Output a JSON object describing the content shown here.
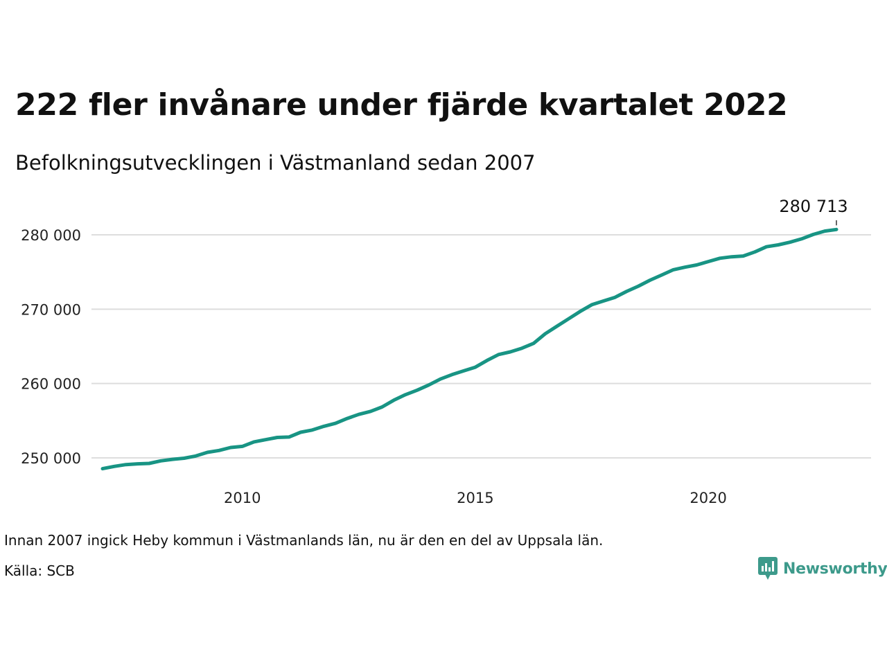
{
  "title": "222 fler invånare under fjärde kvartalet 2022",
  "subtitle": "Befolkningsutvecklingen i Västmanland sedan 2007",
  "note": "Innan 2007 ingick Heby kommun i Västmanlands län, nu är den en del av Uppsala län.",
  "source": "Källa: SCB",
  "brand": {
    "name": "Newsworthy",
    "icon": "newsworthy-logo-icon",
    "color": "#3d9a8b"
  },
  "chart_data": {
    "type": "line",
    "title": "222 fler invånare under fjärde kvartalet 2022",
    "subtitle": "Befolkningsutvecklingen i Västmanland sedan 2007",
    "xlabel": "",
    "ylabel": "",
    "line_color": "#189484",
    "grid": true,
    "ylim": [
      246000,
      282000
    ],
    "xlim": [
      2007.0,
      2022.75
    ],
    "y_ticks": [
      250000,
      260000,
      270000,
      280000
    ],
    "y_tick_labels": [
      "250 000",
      "260 000",
      "270 000",
      "280 000"
    ],
    "x_ticks": [
      2010,
      2015,
      2020
    ],
    "x_tick_labels": [
      "2010",
      "2015",
      "2020"
    ],
    "end_label": "280 713",
    "series": [
      {
        "x": [
          2007.0,
          2007.25,
          2007.5,
          2007.75,
          2008.0,
          2008.25,
          2008.5,
          2008.75,
          2009.0,
          2009.25,
          2009.5,
          2009.75,
          2010.0,
          2010.25,
          2010.5,
          2010.75,
          2011.0,
          2011.25,
          2011.5,
          2011.75,
          2012.0,
          2012.25,
          2012.5,
          2012.75,
          2013.0,
          2013.25,
          2013.5,
          2013.75,
          2014.0,
          2014.25,
          2014.5,
          2014.75,
          2015.0,
          2015.25,
          2015.5,
          2015.75,
          2016.0,
          2016.25,
          2016.5,
          2016.75,
          2017.0,
          2017.25,
          2017.5,
          2017.75,
          2018.0,
          2018.25,
          2018.5,
          2018.75,
          2019.0,
          2019.25,
          2019.5,
          2019.75,
          2020.0,
          2020.25,
          2020.5,
          2020.75,
          2021.0,
          2021.25,
          2021.5,
          2021.75,
          2022.0,
          2022.25,
          2022.5,
          2022.75
        ],
        "values": [
          248550,
          248850,
          249100,
          249200,
          249250,
          249600,
          249800,
          249950,
          250250,
          250750,
          251000,
          251400,
          251550,
          252150,
          252450,
          252750,
          252800,
          253450,
          253750,
          254250,
          254650,
          255300,
          255850,
          256250,
          256850,
          257750,
          258500,
          259100,
          259800,
          260600,
          261200,
          261700,
          262200,
          263100,
          263900,
          264250,
          264750,
          265400,
          266700,
          267700,
          268700,
          269700,
          270600,
          271100,
          271600,
          272400,
          273100,
          273900,
          274600,
          275300,
          275650,
          275950,
          276400,
          276850,
          277050,
          277150,
          277700,
          278400,
          278650,
          279000,
          279450,
          280050,
          280500,
          280713
        ]
      }
    ]
  }
}
